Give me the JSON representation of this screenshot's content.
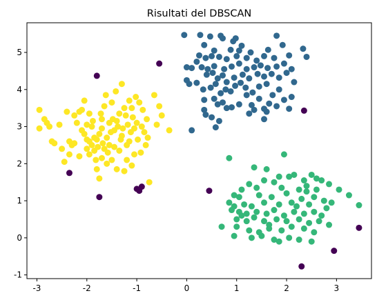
{
  "chart_data": {
    "type": "scatter",
    "title": "Risultati del DBSCAN",
    "xlabel": "",
    "ylabel": "",
    "xlim": [
      -3.2,
      3.7
    ],
    "ylim": [
      -1.1,
      5.8
    ],
    "xticks": [
      -3,
      -2,
      -1,
      0,
      1,
      2,
      3
    ],
    "yticks": [
      -1,
      0,
      1,
      2,
      3,
      4,
      5
    ],
    "grid": false,
    "legend": "none",
    "colors": {
      "noise": "#440154",
      "cluster_top": "#31688e",
      "cluster_left": "#fde725",
      "cluster_bottom": "#35b779"
    },
    "series": [
      {
        "color_key": "noise",
        "points": [
          [
            -1.8,
            4.37
          ],
          [
            -0.55,
            4.7
          ],
          [
            -2.35,
            1.75
          ],
          [
            -1.75,
            1.1
          ],
          [
            -1.0,
            1.32
          ],
          [
            -0.95,
            1.27
          ],
          [
            -0.9,
            1.38
          ],
          [
            0.45,
            1.27
          ],
          [
            2.35,
            3.43
          ],
          [
            2.3,
            -0.77
          ],
          [
            2.95,
            -0.35
          ],
          [
            3.45,
            0.27
          ]
        ]
      },
      {
        "color_key": "cluster_top",
        "points": [
          [
            -0.05,
            5.47
          ],
          [
            0.27,
            5.47
          ],
          [
            0.47,
            5.43
          ],
          [
            0.68,
            5.45
          ],
          [
            0.72,
            5.38
          ],
          [
            0.93,
            5.3
          ],
          [
            0.98,
            5.38
          ],
          [
            1.8,
            5.45
          ],
          [
            1.92,
            5.2
          ],
          [
            2.33,
            5.1
          ],
          [
            0.35,
            5.2
          ],
          [
            0.55,
            5.05
          ],
          [
            0.88,
            5.07
          ],
          [
            1.1,
            5.18
          ],
          [
            1.05,
            5.05
          ],
          [
            1.28,
            5.0
          ],
          [
            1.63,
            5.07
          ],
          [
            0.25,
            4.92
          ],
          [
            0.2,
            4.75
          ],
          [
            0.38,
            4.85
          ],
          [
            0.5,
            4.9
          ],
          [
            0.65,
            4.88
          ],
          [
            0.8,
            4.82
          ],
          [
            1.0,
            4.9
          ],
          [
            1.2,
            4.85
          ],
          [
            1.4,
            4.78
          ],
          [
            1.55,
            4.9
          ],
          [
            1.75,
            4.85
          ],
          [
            2.05,
            4.92
          ],
          [
            2.4,
            4.88
          ],
          [
            0.0,
            4.6
          ],
          [
            0.1,
            4.58
          ],
          [
            0.3,
            4.6
          ],
          [
            0.42,
            4.55
          ],
          [
            0.55,
            4.63
          ],
          [
            0.75,
            4.55
          ],
          [
            0.9,
            4.62
          ],
          [
            1.05,
            4.7
          ],
          [
            1.2,
            4.55
          ],
          [
            1.35,
            4.6
          ],
          [
            1.48,
            4.65
          ],
          [
            1.62,
            4.58
          ],
          [
            1.8,
            4.62
          ],
          [
            1.95,
            4.7
          ],
          [
            2.1,
            4.55
          ],
          [
            0.4,
            4.4
          ],
          [
            0.52,
            4.45
          ],
          [
            0.62,
            4.3
          ],
          [
            0.72,
            4.38
          ],
          [
            0.8,
            4.2
          ],
          [
            0.95,
            4.32
          ],
          [
            1.12,
            4.4
          ],
          [
            1.25,
            4.3
          ],
          [
            1.42,
            4.42
          ],
          [
            1.55,
            4.35
          ],
          [
            1.7,
            4.42
          ],
          [
            1.85,
            4.32
          ],
          [
            2.0,
            4.45
          ],
          [
            2.15,
            4.2
          ],
          [
            0.0,
            4.25
          ],
          [
            0.05,
            4.15
          ],
          [
            0.2,
            4.18
          ],
          [
            0.33,
            4.0
          ],
          [
            0.48,
            4.05
          ],
          [
            0.58,
            4.15
          ],
          [
            0.68,
            3.9
          ],
          [
            0.78,
            4.0
          ],
          [
            0.88,
            3.95
          ],
          [
            0.97,
            4.1
          ],
          [
            1.08,
            4.18
          ],
          [
            1.18,
            4.05
          ],
          [
            1.32,
            3.92
          ],
          [
            1.45,
            4.08
          ],
          [
            1.6,
            4.15
          ],
          [
            1.72,
            3.85
          ],
          [
            1.85,
            4.0
          ],
          [
            1.95,
            3.72
          ],
          [
            0.35,
            3.72
          ],
          [
            0.55,
            3.75
          ],
          [
            0.62,
            3.6
          ],
          [
            0.72,
            3.65
          ],
          [
            0.9,
            3.52
          ],
          [
            1.05,
            3.6
          ],
          [
            1.2,
            3.85
          ],
          [
            1.3,
            3.58
          ],
          [
            1.45,
            3.75
          ],
          [
            1.55,
            3.48
          ],
          [
            1.65,
            3.62
          ],
          [
            1.8,
            3.55
          ],
          [
            2.1,
            3.8
          ],
          [
            0.35,
            3.45
          ],
          [
            0.38,
            3.32
          ],
          [
            0.5,
            3.25
          ],
          [
            0.65,
            3.15
          ],
          [
            0.8,
            3.5
          ],
          [
            1.25,
            3.35
          ],
          [
            1.35,
            3.45
          ],
          [
            1.55,
            3.2
          ],
          [
            1.6,
            3.4
          ],
          [
            2.05,
            3.48
          ],
          [
            0.58,
            2.98
          ],
          [
            0.1,
            2.9
          ]
        ]
      },
      {
        "color_key": "cluster_left",
        "points": [
          [
            -2.95,
            3.45
          ],
          [
            -2.85,
            3.2
          ],
          [
            -2.8,
            3.1
          ],
          [
            -2.95,
            2.95
          ],
          [
            -2.75,
            3.0
          ],
          [
            -2.7,
            2.6
          ],
          [
            -2.65,
            2.55
          ],
          [
            -2.5,
            2.4
          ],
          [
            -2.55,
            3.05
          ],
          [
            -2.4,
            3.4
          ],
          [
            -2.35,
            2.6
          ],
          [
            -2.3,
            2.5
          ],
          [
            -2.25,
            2.55
          ],
          [
            -2.45,
            2.05
          ],
          [
            -2.35,
            2.25
          ],
          [
            -2.2,
            3.1
          ],
          [
            -2.15,
            3.4
          ],
          [
            -2.1,
            3.45
          ],
          [
            -2.05,
            3.7
          ],
          [
            -2.1,
            2.9
          ],
          [
            -2.05,
            2.8
          ],
          [
            -2.0,
            2.65
          ],
          [
            -1.95,
            2.25
          ],
          [
            -1.9,
            3.0
          ],
          [
            -1.88,
            3.15
          ],
          [
            -1.85,
            2.7
          ],
          [
            -1.82,
            2.1
          ],
          [
            -1.8,
            1.85
          ],
          [
            -1.78,
            2.45
          ],
          [
            -1.75,
            2.8
          ],
          [
            -1.72,
            3.35
          ],
          [
            -1.7,
            2.95
          ],
          [
            -1.68,
            2.55
          ],
          [
            -1.65,
            3.55
          ],
          [
            -1.62,
            3.85
          ],
          [
            -1.6,
            2.7
          ],
          [
            -1.58,
            2.3
          ],
          [
            -1.55,
            3.1
          ],
          [
            -1.52,
            2.85
          ],
          [
            -1.5,
            3.65
          ],
          [
            -1.48,
            3.2
          ],
          [
            -1.45,
            2.9
          ],
          [
            -1.42,
            3.95
          ],
          [
            -1.4,
            1.85
          ],
          [
            -1.38,
            3.0
          ],
          [
            -1.35,
            3.35
          ],
          [
            -1.32,
            2.65
          ],
          [
            -1.3,
            4.15
          ],
          [
            -1.28,
            2.95
          ],
          [
            -1.25,
            1.8
          ],
          [
            -1.22,
            3.3
          ],
          [
            -1.2,
            2.5
          ],
          [
            -1.18,
            3.05
          ],
          [
            -1.15,
            3.7
          ],
          [
            -1.12,
            2.85
          ],
          [
            -1.1,
            3.5
          ],
          [
            -1.08,
            3.25
          ],
          [
            -1.05,
            2.95
          ],
          [
            -1.02,
            3.8
          ],
          [
            -1.0,
            3.1
          ],
          [
            -0.98,
            2.65
          ],
          [
            -0.95,
            3.65
          ],
          [
            -0.92,
            2.3
          ],
          [
            -0.9,
            3.0
          ],
          [
            -0.88,
            3.45
          ],
          [
            -0.85,
            2.85
          ],
          [
            -0.82,
            2.5
          ],
          [
            -0.8,
            3.2
          ],
          [
            -0.78,
            2.7
          ],
          [
            -0.75,
            1.5
          ],
          [
            -0.65,
            3.85
          ],
          [
            -0.6,
            3.05
          ],
          [
            -0.55,
            3.55
          ],
          [
            -0.5,
            3.3
          ],
          [
            -0.35,
            2.9
          ],
          [
            -2.15,
            2.2
          ],
          [
            -2.0,
            2.4
          ],
          [
            -1.95,
            2.6
          ],
          [
            -1.85,
            2.35
          ],
          [
            -1.75,
            1.6
          ],
          [
            -1.7,
            2.15
          ],
          [
            -1.6,
            2.0
          ],
          [
            -1.55,
            2.5
          ],
          [
            -1.45,
            2.45
          ],
          [
            -1.35,
            2.35
          ],
          [
            -1.3,
            2.75
          ],
          [
            -1.2,
            2.1
          ],
          [
            -1.15,
            2.6
          ],
          [
            -1.05,
            2.25
          ],
          [
            -1.1,
            1.95
          ],
          [
            -1.95,
            3.35
          ],
          [
            -2.25,
            3.3
          ],
          [
            -1.8,
            2.65
          ],
          [
            -1.65,
            2.4
          ],
          [
            -1.5,
            2.1
          ],
          [
            -1.4,
            3.15
          ],
          [
            -1.25,
            3.5
          ],
          [
            -2.0,
            3.05
          ],
          [
            -1.9,
            2.5
          ],
          [
            -1.7,
            3.2
          ]
        ]
      },
      {
        "color_key": "cluster_bottom",
        "points": [
          [
            0.85,
            2.15
          ],
          [
            1.95,
            2.25
          ],
          [
            1.35,
            1.9
          ],
          [
            1.6,
            1.85
          ],
          [
            2.05,
            1.65
          ],
          [
            1.55,
            1.55
          ],
          [
            1.75,
            1.5
          ],
          [
            2.15,
            1.7
          ],
          [
            2.5,
            1.7
          ],
          [
            2.7,
            1.55
          ],
          [
            2.85,
            1.45
          ],
          [
            1.25,
            1.45
          ],
          [
            1.1,
            1.3
          ],
          [
            1.9,
            1.35
          ],
          [
            2.25,
            1.3
          ],
          [
            2.4,
            1.25
          ],
          [
            2.6,
            1.3
          ],
          [
            3.05,
            1.3
          ],
          [
            3.25,
            1.15
          ],
          [
            0.95,
            1.15
          ],
          [
            1.05,
            1.1
          ],
          [
            1.45,
            1.15
          ],
          [
            1.7,
            1.1
          ],
          [
            2.0,
            1.2
          ],
          [
            2.3,
            1.05
          ],
          [
            2.75,
            1.0
          ],
          [
            0.85,
            0.95
          ],
          [
            0.95,
            0.85
          ],
          [
            1.15,
            0.9
          ],
          [
            1.3,
            0.85
          ],
          [
            1.55,
            0.95
          ],
          [
            1.85,
            0.9
          ],
          [
            2.1,
            0.95
          ],
          [
            2.45,
            0.9
          ],
          [
            2.9,
            0.95
          ],
          [
            0.9,
            0.75
          ],
          [
            1.05,
            0.7
          ],
          [
            1.2,
            0.65
          ],
          [
            1.4,
            0.7
          ],
          [
            1.6,
            0.65
          ],
          [
            1.75,
            0.75
          ],
          [
            1.95,
            0.6
          ],
          [
            2.15,
            0.7
          ],
          [
            2.35,
            0.65
          ],
          [
            2.55,
            0.7
          ],
          [
            2.7,
            0.6
          ],
          [
            3.45,
            0.88
          ],
          [
            1.0,
            0.5
          ],
          [
            1.2,
            0.45
          ],
          [
            1.35,
            0.55
          ],
          [
            1.55,
            0.45
          ],
          [
            1.8,
            0.5
          ],
          [
            2.0,
            0.45
          ],
          [
            2.25,
            0.5
          ],
          [
            2.45,
            0.4
          ],
          [
            2.65,
            0.45
          ],
          [
            0.7,
            0.3
          ],
          [
            1.0,
            0.3
          ],
          [
            1.25,
            0.2
          ],
          [
            1.45,
            0.15
          ],
          [
            1.65,
            0.25
          ],
          [
            1.9,
            0.2
          ],
          [
            2.1,
            0.3
          ],
          [
            2.35,
            0.25
          ],
          [
            2.55,
            0.15
          ],
          [
            2.85,
            0.35
          ],
          [
            0.95,
            0.05
          ],
          [
            1.3,
            0.0
          ],
          [
            1.5,
            0.05
          ],
          [
            1.75,
            -0.05
          ],
          [
            1.85,
            -0.1
          ],
          [
            2.05,
            0.0
          ],
          [
            2.25,
            -0.05
          ],
          [
            2.5,
            -0.1
          ],
          [
            2.6,
            1.6
          ],
          [
            2.35,
            1.55
          ],
          [
            1.85,
            1.65
          ],
          [
            1.4,
            1.35
          ],
          [
            2.55,
            1.1
          ],
          [
            2.2,
            0.85
          ],
          [
            1.65,
            0.35
          ],
          [
            2.8,
            0.8
          ],
          [
            1.1,
            0.6
          ],
          [
            2.4,
            1.4
          ]
        ]
      }
    ]
  }
}
